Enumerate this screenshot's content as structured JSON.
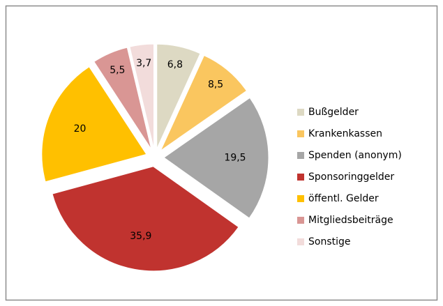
{
  "chart_data": {
    "type": "pie",
    "categories": [
      "Bußgelder",
      "Krankenkassen",
      "Spenden (anonym)",
      "Sponsoringgelder",
      "öffentl. Gelder",
      "Mitgliedsbeiträge",
      "Sonstige"
    ],
    "values": [
      6.8,
      8.5,
      19.5,
      35.9,
      20,
      5.5,
      3.7
    ],
    "value_labels": [
      "6,8",
      "8,5",
      "19,5",
      "35,9",
      "20",
      "5,5",
      "3,7"
    ],
    "colors": [
      "#ddd9c3",
      "#fac65f",
      "#a6a6a6",
      "#c0332f",
      "#ffc000",
      "#d99694",
      "#f2dcdb"
    ],
    "legend": "right"
  }
}
